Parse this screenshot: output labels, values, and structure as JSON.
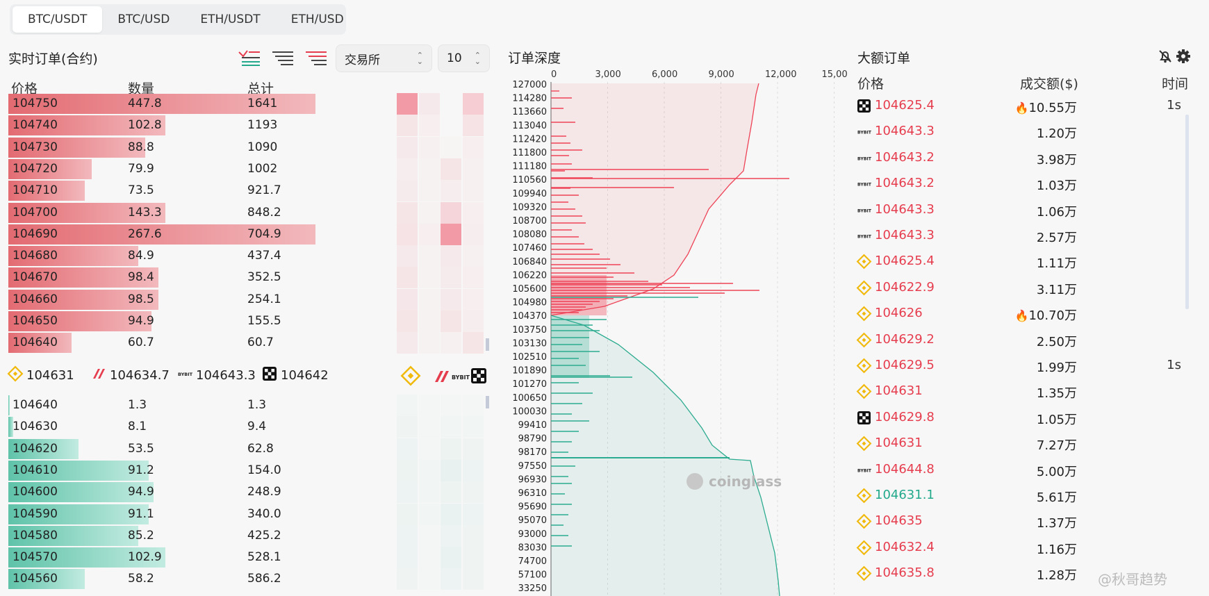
{
  "tabs": [
    "BTC/USDT",
    "BTC/USD",
    "ETH/USDT",
    "ETH/USD"
  ],
  "left": {
    "title": "实时订单(合约)",
    "exchange_select": "交易所",
    "depth_select": "10",
    "col_price": "价格",
    "col_qty": "数量",
    "col_total": "总计",
    "asks": [
      {
        "price": "104750",
        "qty": "447.8",
        "total": "1641",
        "fill": 0.92
      },
      {
        "price": "104740",
        "qty": "102.8",
        "total": "1193",
        "fill": 0.47
      },
      {
        "price": "104730",
        "qty": "88.8",
        "total": "1090",
        "fill": 0.41
      },
      {
        "price": "104720",
        "qty": "79.9",
        "total": "1002",
        "fill": 0.25
      },
      {
        "price": "104710",
        "qty": "73.5",
        "total": "921.7",
        "fill": 0.23
      },
      {
        "price": "104700",
        "qty": "143.3",
        "total": "848.2",
        "fill": 0.47
      },
      {
        "price": "104690",
        "qty": "267.6",
        "total": "704.9",
        "fill": 0.92
      },
      {
        "price": "104680",
        "qty": "84.9",
        "total": "437.4",
        "fill": 0.39
      },
      {
        "price": "104670",
        "qty": "98.4",
        "total": "352.5",
        "fill": 0.45
      },
      {
        "price": "104660",
        "qty": "98.5",
        "total": "254.1",
        "fill": 0.45
      },
      {
        "price": "104650",
        "qty": "94.9",
        "total": "155.5",
        "fill": 0.43
      },
      {
        "price": "104640",
        "qty": "60.7",
        "total": "60.7",
        "fill": 0.19
      }
    ],
    "tickers": [
      {
        "exchange": "binance",
        "price": "104631"
      },
      {
        "exchange": "bitmex",
        "price": "104634.7"
      },
      {
        "exchange": "bybit",
        "price": "104643.3"
      },
      {
        "exchange": "okx",
        "price": "104642"
      }
    ],
    "bids": [
      {
        "price": "104640",
        "qty": "1.3",
        "total": "1.3",
        "fill": 0.005
      },
      {
        "price": "104630",
        "qty": "8.1",
        "total": "9.4",
        "fill": 0.015
      },
      {
        "price": "104620",
        "qty": "53.5",
        "total": "62.8",
        "fill": 0.21
      },
      {
        "price": "104610",
        "qty": "91.2",
        "total": "154.0",
        "fill": 0.42
      },
      {
        "price": "104600",
        "qty": "94.9",
        "total": "248.9",
        "fill": 0.435
      },
      {
        "price": "104590",
        "qty": "91.1",
        "total": "340.0",
        "fill": 0.42
      },
      {
        "price": "104580",
        "qty": "85.2",
        "total": "425.2",
        "fill": 0.39
      },
      {
        "price": "104570",
        "qty": "102.9",
        "total": "528.1",
        "fill": 0.47
      },
      {
        "price": "104560",
        "qty": "58.2",
        "total": "586.2",
        "fill": 0.23
      }
    ]
  },
  "depth": {
    "title": "订单深度",
    "x_ticks": [
      "0",
      "3,000",
      "6,000",
      "9,000",
      "12,000",
      "15,00"
    ],
    "y_labels": [
      "127000",
      "114280",
      "113660",
      "113040",
      "112420",
      "111800",
      "111180",
      "110560",
      "109940",
      "109320",
      "108700",
      "108080",
      "107460",
      "106840",
      "106220",
      "105600",
      "104980",
      "104370",
      "103750",
      "103130",
      "102510",
      "101890",
      "101270",
      "100650",
      "100030",
      "99410",
      "98790",
      "98170",
      "97550",
      "96930",
      "96310",
      "95690",
      "95070",
      "93000",
      "83030",
      "74700",
      "57100",
      "33250"
    ],
    "watermark": "coinglass",
    "ask_color": "#ee4356",
    "bid_color": "#2bab8f"
  },
  "big_orders": {
    "title": "大额订单",
    "col_price": "价格",
    "col_amount": "成交额($)",
    "col_time": "时间",
    "rows": [
      {
        "ex": "okx",
        "price": "104625.4",
        "side": "sell",
        "amount": "10.55万",
        "fire": true,
        "time": "1s"
      },
      {
        "ex": "bybit",
        "price": "104643.3",
        "side": "sell",
        "amount": "1.20万",
        "fire": false,
        "time": ""
      },
      {
        "ex": "bybit",
        "price": "104643.2",
        "side": "sell",
        "amount": "3.98万",
        "fire": false,
        "time": ""
      },
      {
        "ex": "bybit",
        "price": "104643.2",
        "side": "sell",
        "amount": "1.03万",
        "fire": false,
        "time": ""
      },
      {
        "ex": "bybit",
        "price": "104643.3",
        "side": "sell",
        "amount": "1.06万",
        "fire": false,
        "time": ""
      },
      {
        "ex": "bybit",
        "price": "104643.3",
        "side": "sell",
        "amount": "2.57万",
        "fire": false,
        "time": ""
      },
      {
        "ex": "binance",
        "price": "104625.4",
        "side": "sell",
        "amount": "1.11万",
        "fire": false,
        "time": ""
      },
      {
        "ex": "binance",
        "price": "104622.9",
        "side": "sell",
        "amount": "3.11万",
        "fire": false,
        "time": ""
      },
      {
        "ex": "binance",
        "price": "104626",
        "side": "sell",
        "amount": "10.70万",
        "fire": true,
        "time": ""
      },
      {
        "ex": "binance",
        "price": "104629.2",
        "side": "sell",
        "amount": "2.50万",
        "fire": false,
        "time": ""
      },
      {
        "ex": "binance",
        "price": "104629.5",
        "side": "sell",
        "amount": "1.99万",
        "fire": false,
        "time": "1s"
      },
      {
        "ex": "binance",
        "price": "104631",
        "side": "sell",
        "amount": "1.35万",
        "fire": false,
        "time": ""
      },
      {
        "ex": "okx",
        "price": "104629.8",
        "side": "sell",
        "amount": "1.05万",
        "fire": false,
        "time": ""
      },
      {
        "ex": "binance",
        "price": "104631",
        "side": "sell",
        "amount": "7.27万",
        "fire": false,
        "time": ""
      },
      {
        "ex": "bybit",
        "price": "104644.8",
        "side": "sell",
        "amount": "5.00万",
        "fire": false,
        "time": ""
      },
      {
        "ex": "binance",
        "price": "104631.1",
        "side": "buy",
        "amount": "5.61万",
        "fire": false,
        "time": ""
      },
      {
        "ex": "binance",
        "price": "104635",
        "side": "sell",
        "amount": "1.37万",
        "fire": false,
        "time": ""
      },
      {
        "ex": "binance",
        "price": "104632.4",
        "side": "sell",
        "amount": "1.16万",
        "fire": false,
        "time": ""
      },
      {
        "ex": "binance",
        "price": "104635.8",
        "side": "sell",
        "amount": "1.28万",
        "fire": false,
        "time": ""
      }
    ]
  },
  "footer_watermark": "@秋哥趋势"
}
